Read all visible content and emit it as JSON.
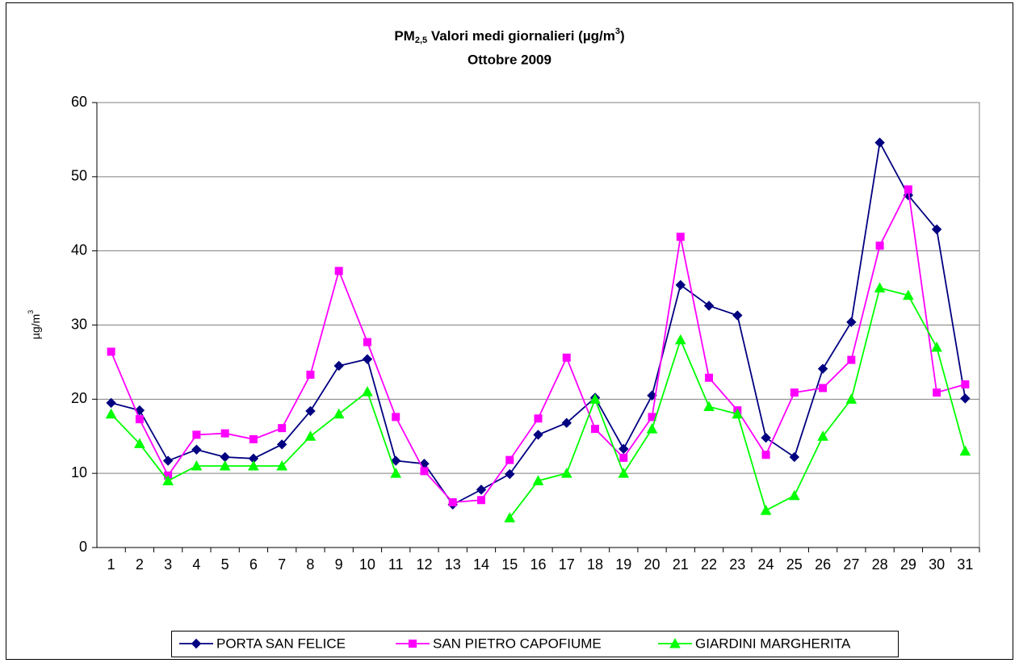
{
  "chart_data": {
    "type": "line",
    "title": [
      "PM",
      "2,5",
      " Valori medi giornalieri (µg/m",
      "3",
      ")"
    ],
    "subtitle": "Ottobre 2009",
    "y_label": [
      "µg/m",
      "3"
    ],
    "categories": [
      "1",
      "2",
      "3",
      "4",
      "5",
      "6",
      "7",
      "8",
      "9",
      "10",
      "11",
      "12",
      "13",
      "14",
      "15",
      "16",
      "17",
      "18",
      "19",
      "20",
      "21",
      "22",
      "23",
      "24",
      "25",
      "26",
      "27",
      "28",
      "29",
      "30",
      "31"
    ],
    "ylim": [
      0,
      60
    ],
    "yticks": [
      0,
      10,
      20,
      30,
      40,
      50,
      60
    ],
    "grid": true,
    "legend": "bottom",
    "series": [
      {
        "name": "PORTA SAN FELICE",
        "color": "#000080",
        "marker": "diamond",
        "values": [
          19.5,
          18.5,
          11.7,
          13.2,
          12.2,
          12.0,
          13.9,
          18.4,
          24.5,
          25.4,
          11.7,
          11.3,
          5.8,
          7.8,
          9.9,
          15.2,
          16.8,
          20.2,
          13.3,
          20.5,
          35.4,
          32.6,
          31.3,
          14.8,
          12.2,
          24.1,
          30.4,
          54.6,
          47.5,
          42.9,
          20.1
        ]
      },
      {
        "name": "SAN PIETRO CAPOFIUME",
        "color": "#ff00ff",
        "marker": "square",
        "values": [
          26.4,
          17.3,
          9.7,
          15.2,
          15.4,
          14.6,
          16.1,
          23.3,
          37.3,
          27.7,
          17.6,
          10.3,
          6.1,
          6.4,
          11.8,
          17.4,
          25.6,
          16.0,
          12.1,
          17.6,
          41.9,
          22.9,
          18.5,
          12.5,
          20.9,
          21.5,
          25.3,
          40.7,
          48.3,
          20.9,
          22.0
        ]
      },
      {
        "name": "GIARDINI MARGHERITA",
        "color": "#00ff00",
        "marker": "triangle",
        "values": [
          18,
          14,
          9,
          11,
          11,
          11,
          11,
          15,
          18,
          21,
          10,
          null,
          null,
          null,
          4,
          9,
          10,
          20,
          10,
          16,
          28,
          19,
          18,
          5,
          7,
          15,
          20,
          35,
          34,
          27,
          13
        ]
      }
    ]
  }
}
